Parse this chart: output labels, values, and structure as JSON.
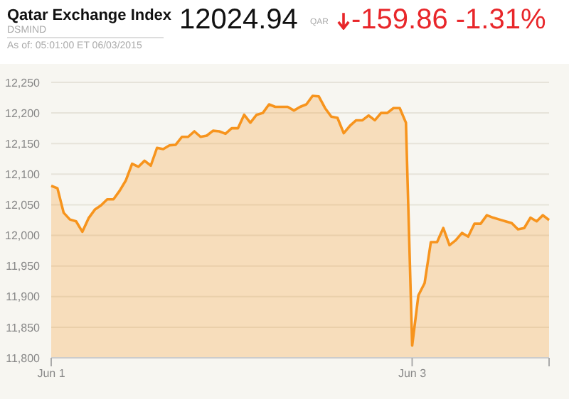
{
  "chart_data": {
    "type": "area",
    "title": "Qatar Exchange Index",
    "subtitle": "DSMIND",
    "annotations": [
      "12024.94",
      "QAR",
      "-159.86 -1.31%",
      "As of: 05:01:00 ET 06/03/2015"
    ],
    "categories": [
      "Jun 1",
      null,
      null,
      null,
      null,
      null,
      null,
      null,
      null,
      null,
      null,
      null,
      null,
      null,
      null,
      null,
      null,
      null,
      null,
      null,
      null,
      null,
      null,
      null,
      null,
      null,
      null,
      null,
      null,
      null,
      null,
      null,
      null,
      null,
      null,
      null,
      null,
      null,
      null,
      null,
      null,
      null,
      null,
      null,
      null,
      null,
      null,
      null,
      null,
      null,
      null,
      null,
      null,
      null,
      null,
      null,
      null,
      null,
      "Jun 3",
      null,
      null,
      null,
      null,
      null,
      null,
      null,
      null,
      null,
      null,
      null,
      null,
      null,
      null,
      null,
      null,
      null,
      null,
      null,
      null,
      null,
      null
    ],
    "series": [
      {
        "color": "#f7941d",
        "values": [
          12081,
          12077,
          12037,
          12026,
          12023,
          12006,
          12028,
          12042,
          12049,
          12059,
          12059,
          12073,
          12090,
          12117,
          12112,
          12122,
          12114,
          12143,
          12141,
          12147,
          12148,
          12161,
          12161,
          12170,
          12161,
          12163,
          12171,
          12170,
          12166,
          12175,
          12175,
          12197,
          12184,
          12197,
          12200,
          12214,
          12210,
          12210,
          12210,
          12204,
          12210,
          12214,
          12228,
          12227,
          12208,
          12194,
          12192,
          12167,
          12179,
          12188,
          12188,
          12196,
          12188,
          12200,
          12200,
          12208,
          12208,
          12184,
          11820,
          11902,
          11922,
          11989,
          11989,
          12012,
          11984,
          11992,
          12004,
          11998,
          12019,
          12019,
          12033,
          12029,
          12026,
          12023,
          12020,
          12010,
          12012,
          12029,
          12023,
          12033,
          12025
        ]
      }
    ],
    "ylim": [
      11800,
      12250
    ],
    "yticks": [
      {
        "value": 11800,
        "label": "11,800"
      },
      {
        "value": 11850,
        "label": "11,850"
      },
      {
        "value": 11900,
        "label": "11,900"
      },
      {
        "value": 11950,
        "label": "11,950"
      },
      {
        "value": 12000,
        "label": "12,000"
      },
      {
        "value": 12050,
        "label": "12,050"
      },
      {
        "value": 12100,
        "label": "12,100"
      },
      {
        "value": 12150,
        "label": "12,150"
      },
      {
        "value": 12200,
        "label": "12,200"
      },
      {
        "value": 12250,
        "label": "12,250"
      }
    ],
    "grid": "y"
  }
}
